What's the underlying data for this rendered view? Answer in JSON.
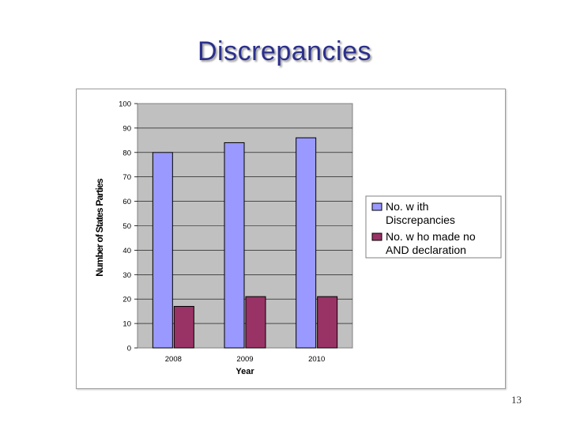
{
  "slide": {
    "title": "Discrepancies",
    "page_number": "13"
  },
  "colors": {
    "title": "#2b2f8c",
    "plot_background": "#c0c0c0",
    "series_1": "#9999ff",
    "series_2": "#993366"
  },
  "chart_data": {
    "type": "bar",
    "title": "",
    "xlabel": "Year",
    "ylabel": "Number of States Parties",
    "categories": [
      "2008",
      "2009",
      "2010"
    ],
    "ylim": [
      0,
      100
    ],
    "yticks": [
      0,
      10,
      20,
      30,
      40,
      50,
      60,
      70,
      80,
      90,
      100
    ],
    "grid": true,
    "legend_position": "right",
    "series": [
      {
        "name": "No. with Discrepancies",
        "legend_lines": [
          "No. w ith",
          "Discrepancies"
        ],
        "color": "#9999ff",
        "values": [
          80,
          84,
          86
        ]
      },
      {
        "name": "No. who made no AND declaration",
        "legend_lines": [
          "No. w ho made no",
          "AND declaration"
        ],
        "color": "#993366",
        "values": [
          17,
          21,
          21
        ]
      }
    ]
  }
}
